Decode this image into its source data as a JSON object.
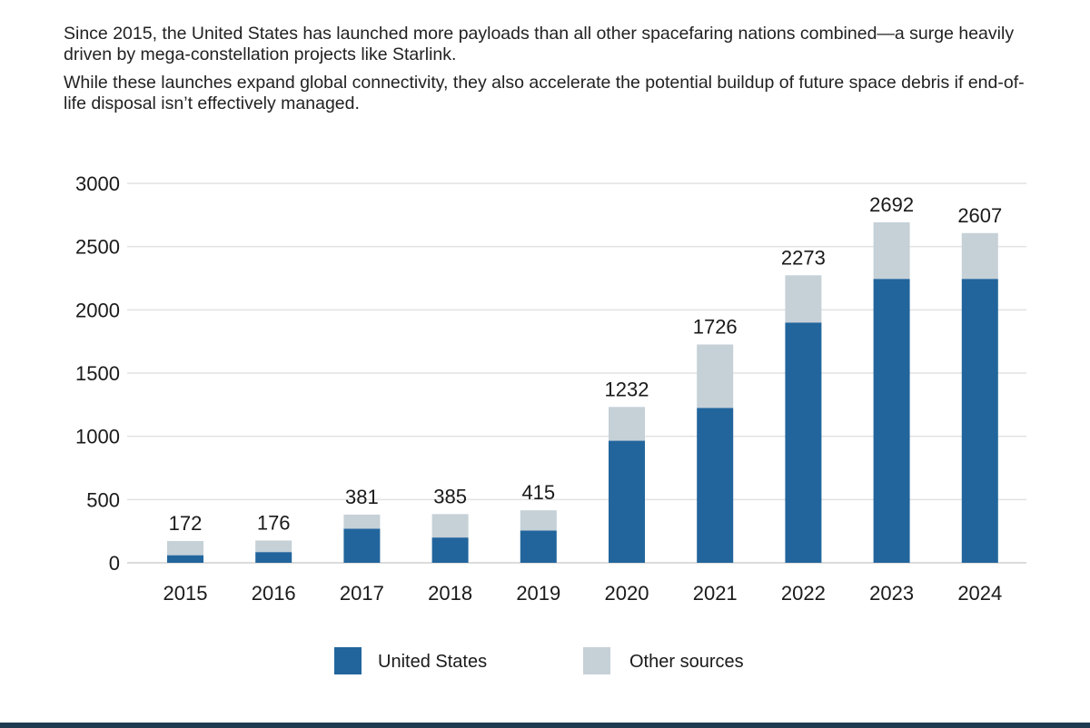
{
  "intro": {
    "paragraph1": "Since 2015, the United States has launched more payloads than all other spacefaring nations combined—a surge heavily driven by mega-constellation projects like Starlink.",
    "paragraph2": "While these launches expand global connectivity, they also accelerate the potential buildup of future space debris if end-of-life disposal isn’t effectively managed."
  },
  "chart_data": {
    "type": "bar",
    "stacked": true,
    "title": "",
    "xlabel": "",
    "ylabel": "",
    "ylim": [
      0,
      3000
    ],
    "yticks": [
      0,
      500,
      1000,
      1500,
      2000,
      2500,
      3000
    ],
    "grid": true,
    "categories": [
      "2015",
      "2016",
      "2017",
      "2018",
      "2019",
      "2020",
      "2021",
      "2022",
      "2023",
      "2024"
    ],
    "series": [
      {
        "name": "United States",
        "color": "#22659c",
        "values": [
          60,
          85,
          270,
          200,
          255,
          965,
          1225,
          1900,
          2245,
          2245
        ]
      },
      {
        "name": "Other sources",
        "color": "#c5d0d7",
        "values": [
          112,
          91,
          111,
          185,
          160,
          267,
          501,
          373,
          447,
          362
        ]
      }
    ],
    "totals": [
      172,
      176,
      381,
      385,
      415,
      1232,
      1726,
      2273,
      2692,
      2607
    ],
    "legend_position": "bottom-center"
  }
}
